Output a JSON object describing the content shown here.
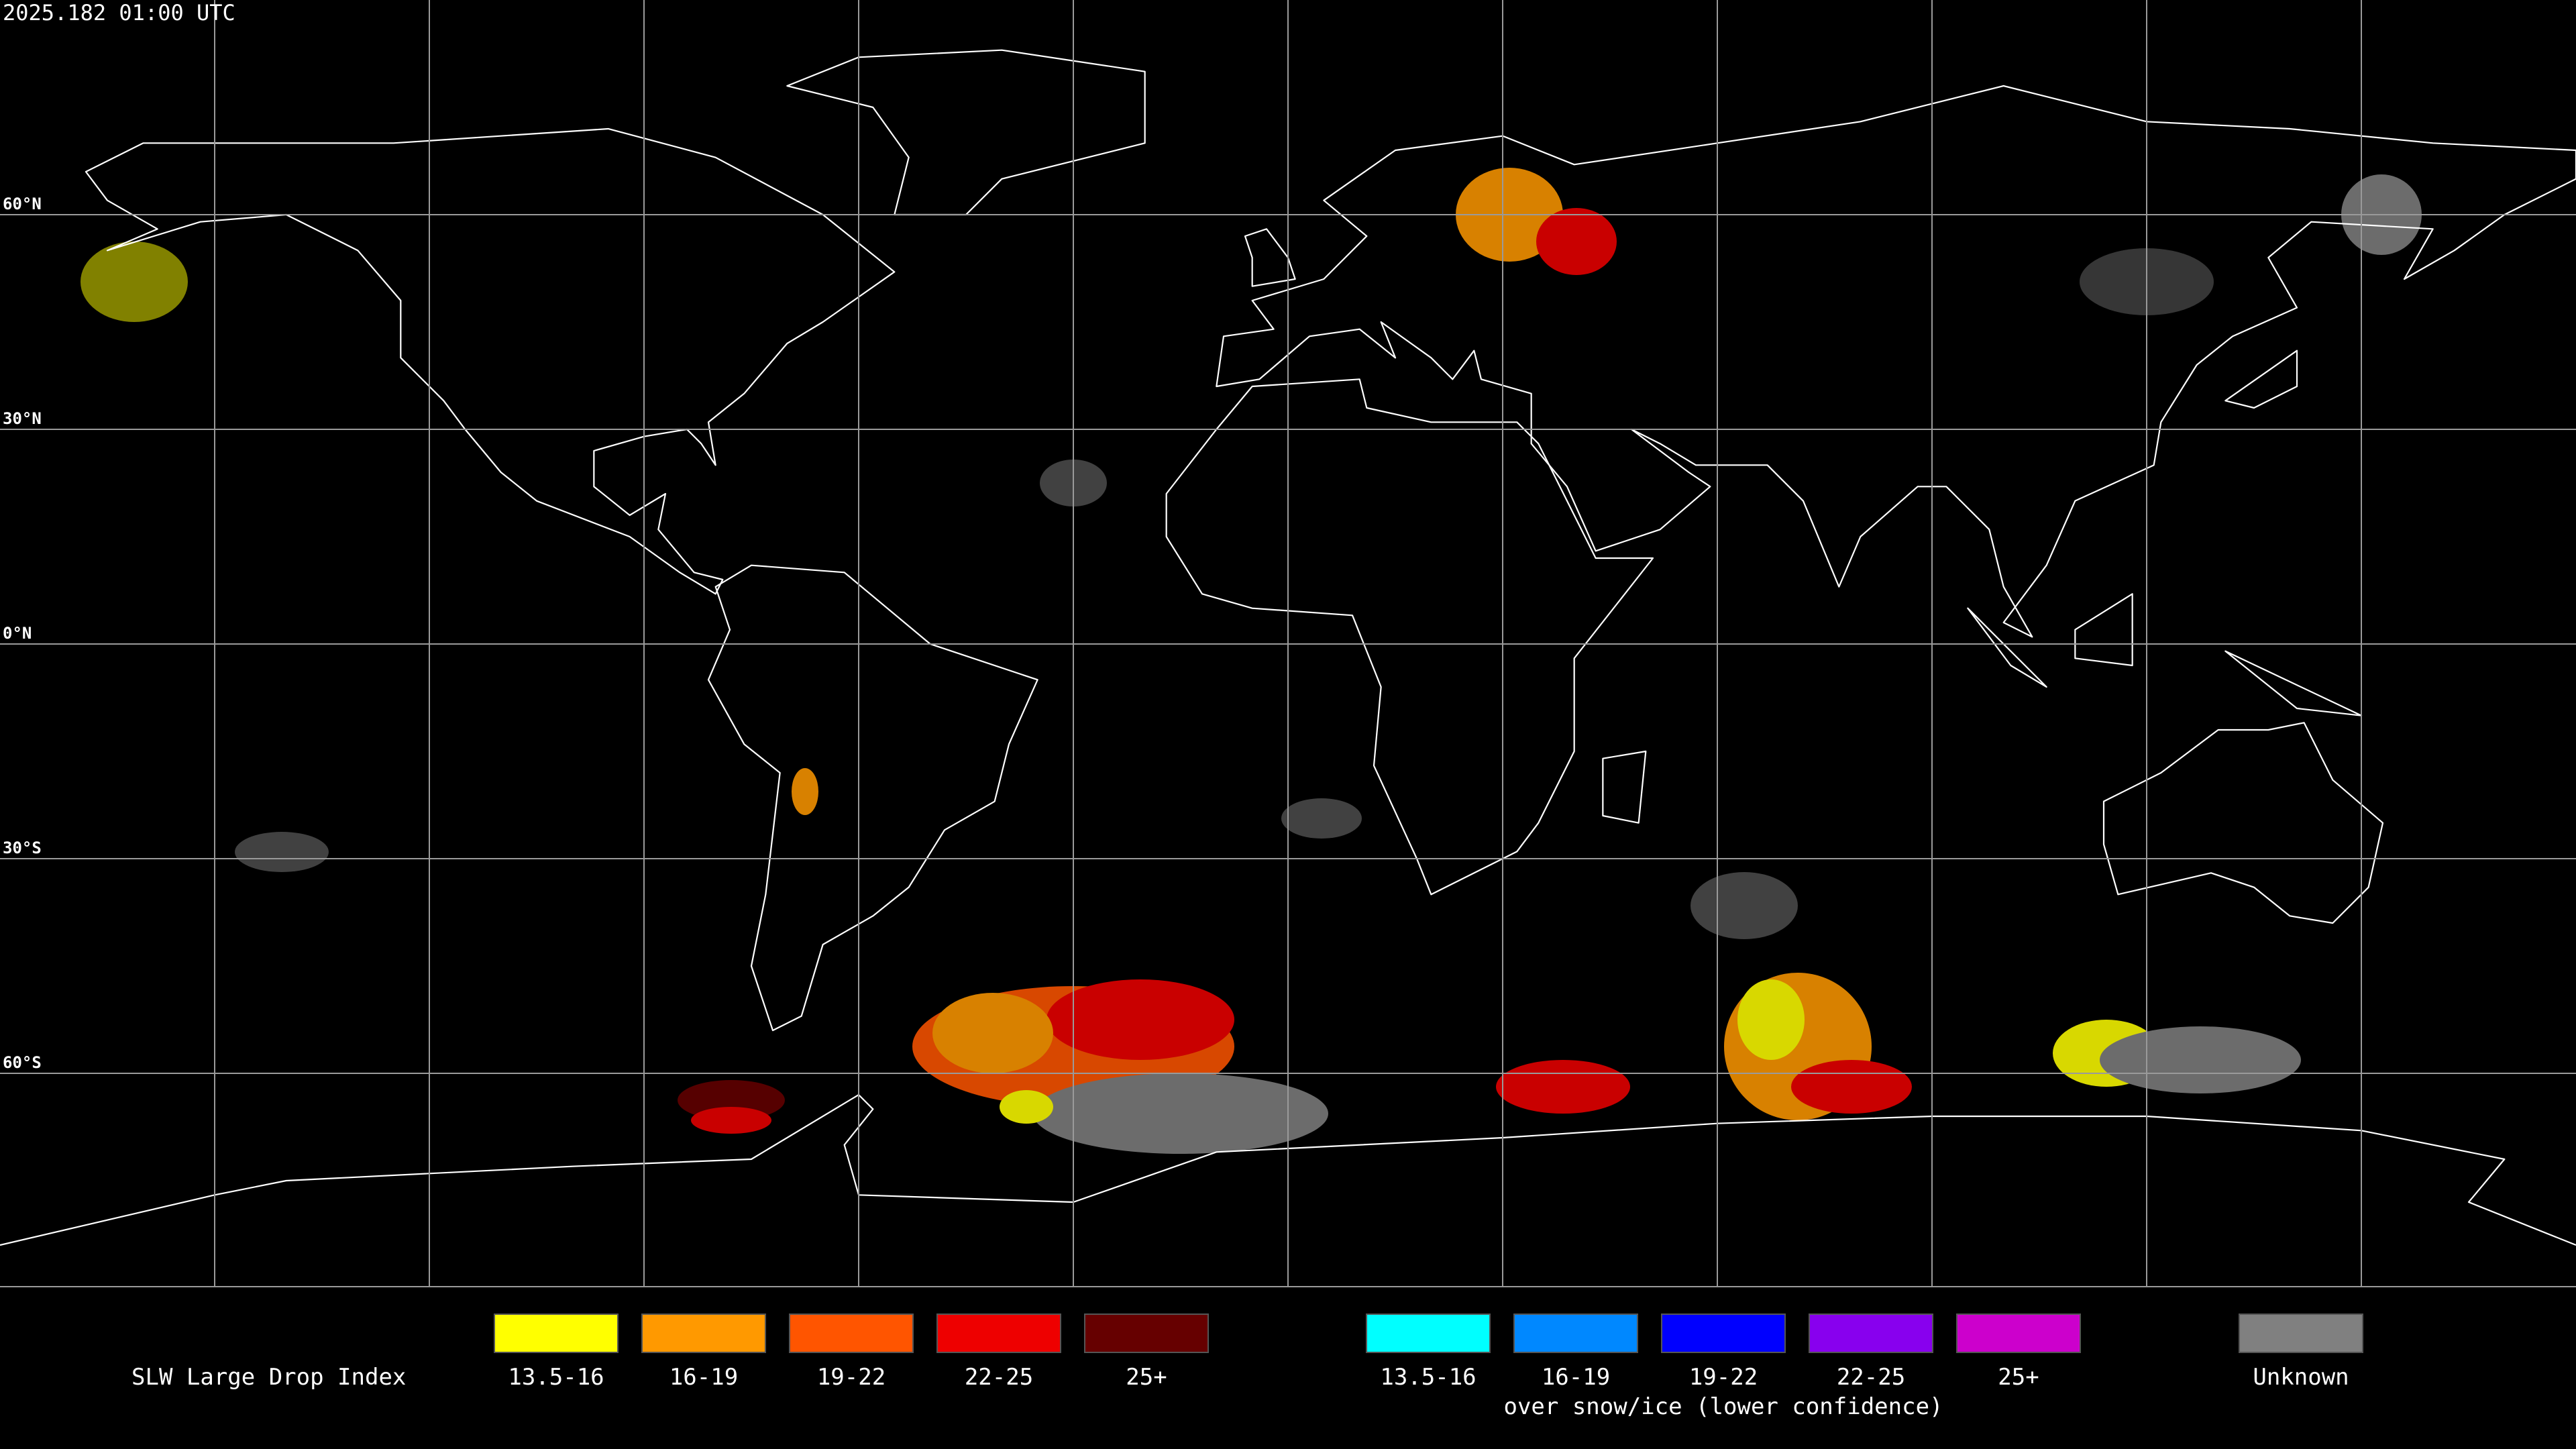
{
  "header": {
    "timestamp": "2025.182 01:00 UTC"
  },
  "grid": {
    "latitude_labels": [
      "60°N",
      "30°N",
      "0°N",
      "30°S",
      "60°S"
    ]
  },
  "legend": {
    "title": "SLW Large Drop Index",
    "groups": [
      {
        "items": [
          {
            "label": "13.5-16",
            "color": "#ffff00"
          },
          {
            "label": "16-19",
            "color": "#ff9900"
          },
          {
            "label": "19-22",
            "color": "#ff5500"
          },
          {
            "label": "22-25",
            "color": "#ee0000"
          },
          {
            "label": "25+",
            "color": "#660000"
          }
        ]
      },
      {
        "items": [
          {
            "label": "13.5-16",
            "color": "#00ffff"
          },
          {
            "label": "16-19",
            "color": "#0088ff"
          },
          {
            "label": "19-22",
            "color": "#0000ff"
          },
          {
            "label": "22-25",
            "color": "#8800ee"
          },
          {
            "label": "25+",
            "color": "#cc00cc"
          }
        ],
        "caption": "over snow/ice (lower confidence)"
      }
    ],
    "unknown": {
      "label": "Unknown",
      "color": "#808080"
    }
  }
}
